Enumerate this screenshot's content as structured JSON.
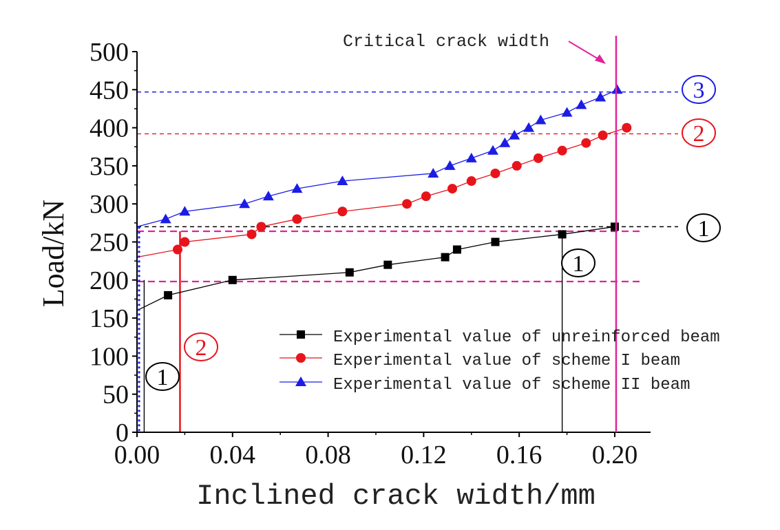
{
  "chart_data": {
    "type": "line",
    "xlabel": "Inclined crack width/mm",
    "ylabel": "Load/kN",
    "xlim": [
      0,
      0.215
    ],
    "ylim": [
      0,
      500
    ],
    "xticks": [
      "0.00",
      "0.04",
      "0.08",
      "0.12",
      "0.16",
      "0.20"
    ],
    "yticks": [
      "0",
      "50",
      "100",
      "150",
      "200",
      "250",
      "300",
      "350",
      "400",
      "450",
      "500"
    ],
    "legend_position": "lower-right",
    "series": [
      {
        "name": "Experimental value of unreinforced beam",
        "color": "#000000",
        "marker": "square",
        "x": [
          0,
          0.013,
          0.04,
          0.089,
          0.105,
          0.129,
          0.134,
          0.15,
          0.178,
          0.2
        ],
        "y": [
          160,
          180,
          200,
          210,
          220,
          230,
          240,
          250,
          260,
          270
        ]
      },
      {
        "name": "Experimental value of scheme I beam",
        "color": "#e8141c",
        "marker": "circle",
        "x": [
          0,
          0.017,
          0.02,
          0.048,
          0.052,
          0.067,
          0.086,
          0.113,
          0.121,
          0.132,
          0.14,
          0.15,
          0.159,
          0.168,
          0.178,
          0.188,
          0.195,
          0.205
        ],
        "y": [
          230,
          240,
          250,
          260,
          270,
          280,
          290,
          300,
          310,
          320,
          330,
          340,
          350,
          360,
          370,
          380,
          390,
          400
        ]
      },
      {
        "name": "Experimental value of scheme II beam",
        "color": "#1c1ce6",
        "marker": "triangle",
        "x": [
          0,
          0.012,
          0.02,
          0.045,
          0.055,
          0.067,
          0.086,
          0.124,
          0.131,
          0.14,
          0.149,
          0.154,
          0.158,
          0.164,
          0.169,
          0.18,
          0.186,
          0.194,
          0.201
        ],
        "y": [
          270,
          280,
          290,
          300,
          310,
          320,
          330,
          340,
          350,
          360,
          370,
          380,
          390,
          400,
          410,
          420,
          430,
          440,
          450
        ]
      }
    ],
    "critical_line": {
      "label": "Critical crack width",
      "x": 0.2,
      "color": "#e0239a"
    },
    "reference_lines": [
      {
        "y": 447,
        "color": "#1c1ce6",
        "style": "dashed"
      },
      {
        "y": 392,
        "color": "#e8141c",
        "style": "dashed"
      },
      {
        "y": 270,
        "color": "#000000",
        "style": "dashed"
      },
      {
        "y": 264,
        "color": "#e0239a",
        "style": "dashed"
      },
      {
        "y": 198,
        "color": "#e0239a",
        "style": "dashed"
      }
    ],
    "vertical_markers": [
      {
        "x": 0.003,
        "y_top": 200,
        "color": "#000000"
      },
      {
        "x": 0.018,
        "y_top": 264,
        "color": "#e8141c"
      },
      {
        "x": 0.178,
        "y_top": 260,
        "color": "#000000"
      }
    ],
    "annotations": [
      {
        "id": "ann-3-right",
        "text": "3",
        "color": "#1c1ce6"
      },
      {
        "id": "ann-2-right",
        "text": "2",
        "color": "#e8141c"
      },
      {
        "id": "ann-1-right",
        "text": "1",
        "color": "#000000"
      },
      {
        "id": "ann-1-mid",
        "text": "1",
        "color": "#000000"
      },
      {
        "id": "ann-2-left",
        "text": "2",
        "color": "#e8141c"
      },
      {
        "id": "ann-1-left",
        "text": "1",
        "color": "#000000"
      }
    ]
  }
}
